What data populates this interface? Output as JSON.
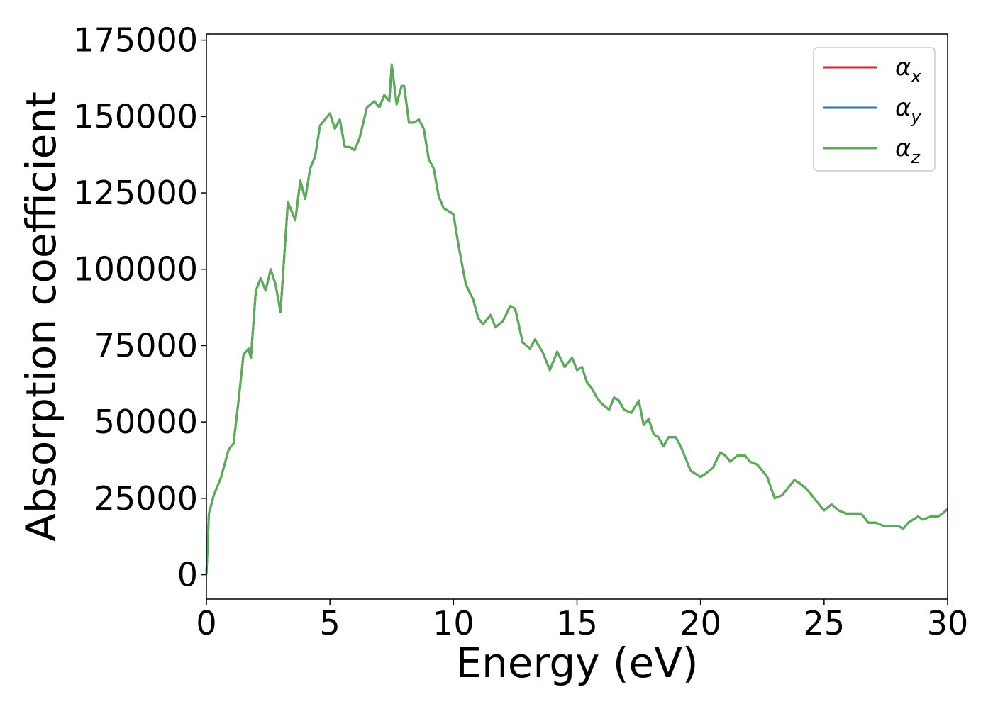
{
  "chart_data": {
    "type": "line",
    "xlabel": "Energy (eV)",
    "ylabel": "Absorption coefficient",
    "xlim": [
      0,
      30
    ],
    "ylim": [
      -8000,
      177000
    ],
    "x_ticks": [
      0,
      5,
      10,
      15,
      20,
      25,
      30
    ],
    "x_tick_labels": [
      "0",
      "5",
      "10",
      "15",
      "20",
      "25",
      "30"
    ],
    "y_ticks": [
      0,
      25000,
      50000,
      75000,
      100000,
      125000,
      150000,
      175000
    ],
    "y_tick_labels": [
      "0",
      "25000",
      "50000",
      "75000",
      "100000",
      "125000",
      "150000",
      "175000"
    ],
    "legend_position": "top-right",
    "grid": false,
    "series": [
      {
        "name": "α",
        "subscript": "x",
        "color": "#d62728",
        "same_as": "z"
      },
      {
        "name": "α",
        "subscript": "y",
        "color": "#1f77b4",
        "same_as": "z"
      },
      {
        "name": "α",
        "subscript": "z",
        "color": "#5aad55"
      }
    ],
    "x": [
      0,
      0.1,
      0.3,
      0.6,
      0.9,
      1.1,
      1.3,
      1.5,
      1.7,
      1.8,
      2.0,
      2.2,
      2.4,
      2.6,
      2.8,
      3.0,
      3.3,
      3.6,
      3.8,
      4.0,
      4.2,
      4.4,
      4.6,
      5.0,
      5.2,
      5.4,
      5.6,
      5.8,
      6.0,
      6.2,
      6.5,
      6.8,
      7.0,
      7.2,
      7.4,
      7.5,
      7.7,
      7.9,
      8.0,
      8.2,
      8.4,
      8.6,
      8.8,
      9.0,
      9.2,
      9.4,
      9.6,
      9.8,
      10.0,
      10.2,
      10.5,
      10.8,
      11.0,
      11.2,
      11.5,
      11.7,
      12.0,
      12.3,
      12.5,
      12.8,
      13.1,
      13.3,
      13.6,
      13.9,
      14.2,
      14.5,
      14.8,
      15.0,
      15.2,
      15.4,
      15.6,
      15.8,
      16.0,
      16.3,
      16.5,
      16.7,
      16.9,
      17.2,
      17.5,
      17.7,
      17.9,
      18.1,
      18.3,
      18.5,
      18.7,
      19.0,
      19.2,
      19.4,
      19.6,
      19.8,
      20.0,
      20.2,
      20.5,
      20.8,
      21.0,
      21.2,
      21.5,
      21.8,
      22.0,
      22.3,
      22.5,
      22.7,
      23.0,
      23.3,
      23.5,
      23.8,
      24.0,
      24.3,
      24.6,
      24.8,
      25.0,
      25.3,
      25.6,
      25.9,
      26.2,
      26.5,
      26.8,
      27.1,
      27.4,
      27.7,
      28.0,
      28.2,
      28.4,
      28.6,
      28.8,
      29.0,
      29.3,
      29.6,
      29.8,
      30.0
    ],
    "y": [
      0,
      20000,
      26000,
      32000,
      41000,
      43000,
      57000,
      72000,
      74000,
      71000,
      93000,
      97000,
      93000,
      100000,
      95000,
      86000,
      122000,
      116000,
      129000,
      123000,
      133000,
      137000,
      147000,
      151000,
      146000,
      149000,
      140000,
      140000,
      139000,
      143000,
      153000,
      155000,
      153000,
      157000,
      155000,
      167000,
      154000,
      160000,
      160000,
      148000,
      148000,
      149000,
      146000,
      136000,
      133000,
      124000,
      120000,
      119000,
      118000,
      108000,
      95000,
      90000,
      84000,
      82000,
      85000,
      81000,
      83000,
      88000,
      87000,
      76000,
      74000,
      77000,
      73000,
      67000,
      73000,
      68000,
      71000,
      67000,
      68000,
      63000,
      61000,
      58000,
      56000,
      54000,
      58000,
      57000,
      54000,
      53000,
      57000,
      49000,
      51000,
      46000,
      45000,
      42000,
      45000,
      45000,
      42000,
      38000,
      34000,
      33000,
      32000,
      33000,
      35000,
      40000,
      39000,
      37000,
      39000,
      39000,
      37000,
      36000,
      34000,
      32000,
      25000,
      26000,
      28000,
      31000,
      30000,
      28000,
      25000,
      23000,
      21000,
      23000,
      21000,
      20000,
      20000,
      20000,
      17000,
      17000,
      16000,
      16000,
      16000,
      15000,
      17000,
      18000,
      19000,
      18000,
      19000,
      19000,
      20000,
      21500
    ]
  }
}
